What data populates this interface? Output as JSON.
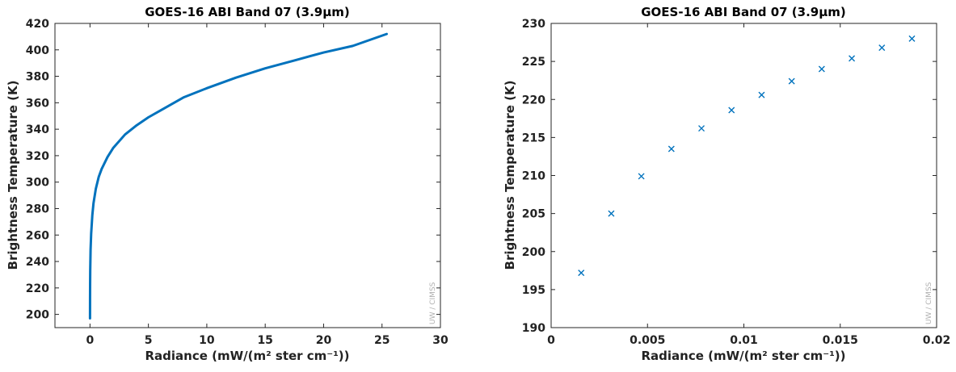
{
  "chart_data": [
    {
      "type": "line",
      "title": "GOES-16 ABI Band 07 (3.9μm)",
      "xlabel": "Radiance (mW/(m² ster cm⁻¹))",
      "ylabel": "Brightness Temperature (K)",
      "xlim": [
        -3,
        30
      ],
      "ylim": [
        190,
        420
      ],
      "xticks": [
        0,
        5,
        10,
        15,
        20,
        25,
        30
      ],
      "yticks": [
        200,
        220,
        240,
        260,
        280,
        300,
        320,
        340,
        360,
        380,
        400,
        420
      ],
      "grid": false,
      "watermark": "UW / CIMSS",
      "series": [
        {
          "color": "#0072bd",
          "x": [
            0.0015,
            0.005,
            0.01,
            0.02,
            0.05,
            0.1,
            0.2,
            0.3,
            0.5,
            0.75,
            1.0,
            1.5,
            2.0,
            3.0,
            4.0,
            5.0,
            6.0,
            8.0,
            10.0,
            12.5,
            15.0,
            17.5,
            20.0,
            22.5,
            25.4
          ],
          "y": [
            197,
            213,
            222,
            233,
            249,
            261,
            275,
            284,
            295,
            304,
            310,
            319,
            326,
            336,
            343,
            349,
            354,
            364,
            371,
            379,
            386,
            392,
            398,
            403,
            412
          ]
        }
      ]
    },
    {
      "type": "scatter",
      "title": "GOES-16 ABI Band 07 (3.9μm)",
      "xlabel": "Radiance (mW/(m² ster cm⁻¹))",
      "ylabel": "Brightness Temperature (K)",
      "xlim": [
        0,
        0.02
      ],
      "ylim": [
        190,
        230
      ],
      "xticks": [
        0,
        0.005,
        0.01,
        0.015,
        0.02
      ],
      "yticks": [
        190,
        195,
        200,
        205,
        210,
        215,
        220,
        225,
        230
      ],
      "grid": false,
      "marker": "x",
      "watermark": "UW / CIMSS",
      "series": [
        {
          "color": "#0072bd",
          "x": [
            0.00156,
            0.00312,
            0.00468,
            0.00624,
            0.0078,
            0.00936,
            0.01092,
            0.01248,
            0.01404,
            0.0156,
            0.01716,
            0.01872
          ],
          "y": [
            197.2,
            205.0,
            209.9,
            213.5,
            216.2,
            218.6,
            220.6,
            222.4,
            224.0,
            225.4,
            226.8,
            228.0
          ]
        }
      ]
    }
  ]
}
